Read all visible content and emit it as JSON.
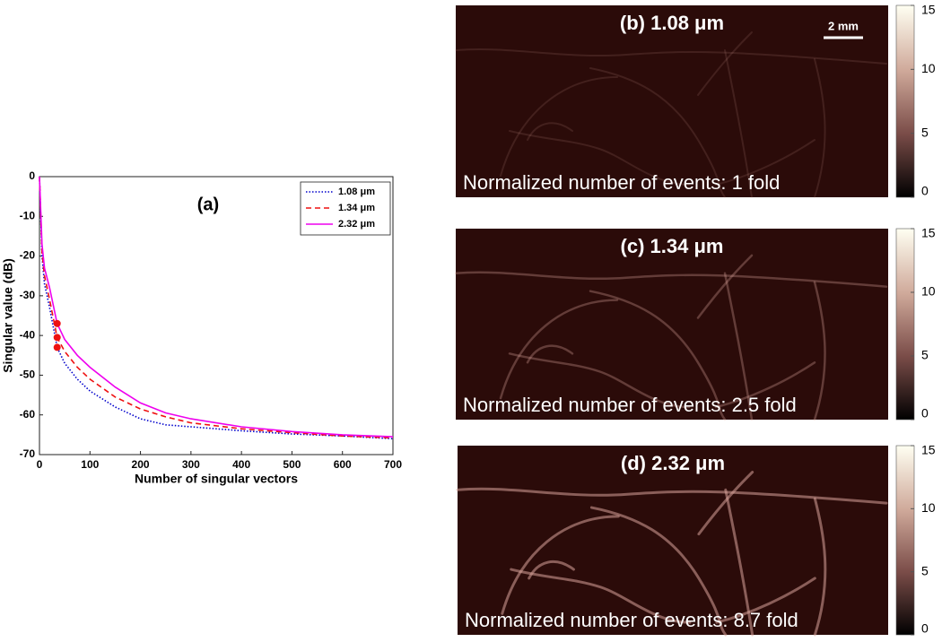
{
  "chart_data": [
    {
      "type": "line",
      "title": "(a)",
      "x_label": "Number of singular vectors",
      "y_label": "Singular value (dB)",
      "x": [
        0,
        5,
        10,
        20,
        35,
        50,
        75,
        100,
        150,
        200,
        250,
        300,
        400,
        500,
        600,
        700
      ],
      "series": [
        {
          "name": "1.08 μm",
          "color": "#0000cc",
          "dash": "dotted",
          "values": [
            0,
            -20,
            -27,
            -33,
            -43,
            -47,
            -51,
            -54,
            -58,
            -61,
            -62.5,
            -63,
            -64,
            -64.8,
            -65.3,
            -66
          ]
        },
        {
          "name": "1.34 μm",
          "color": "#ee1111",
          "dash": "dashed",
          "values": [
            0,
            -19,
            -25,
            -31,
            -40.5,
            -44,
            -48,
            -51,
            -55.5,
            -58.5,
            -60.5,
            -62,
            -63.5,
            -64.5,
            -65.3,
            -65.8
          ]
        },
        {
          "name": "2.32 μm",
          "color": "#ee00ee",
          "dash": "solid",
          "values": [
            0,
            -17,
            -23,
            -28,
            -37,
            -41,
            -45,
            -48,
            -53,
            -57,
            -59.5,
            -61,
            -63,
            -64.2,
            -65,
            -65.5
          ]
        }
      ],
      "markers": {
        "color": "#ee1111",
        "x": [
          35,
          35,
          35
        ],
        "values": [
          -37,
          -40.5,
          -43
        ]
      },
      "xlim": [
        0,
        700
      ],
      "xticks": [
        0,
        100,
        200,
        300,
        400,
        500,
        600,
        700
      ],
      "ylim": [
        -70,
        0
      ],
      "yticks": [
        -70,
        -60,
        -50,
        -40,
        -30,
        -20,
        -10,
        0
      ],
      "legend": "upper right"
    },
    {
      "type": "image",
      "title": "(b) 1.08 μm",
      "scale_bar_label": "2 mm",
      "annotation": "Normalized number of events: 1 fold",
      "clim": [
        0,
        15
      ],
      "cticks": [
        0,
        5,
        10,
        15
      ]
    },
    {
      "type": "image",
      "title": "(c) 1.34 μm",
      "annotation": "Normalized number of events: 2.5 fold",
      "clim": [
        0,
        15
      ],
      "cticks": [
        0,
        5,
        10,
        15
      ]
    },
    {
      "type": "image",
      "title": "(d) 2.32 μm",
      "annotation": "Normalized number of events: 8.7 fold",
      "clim": [
        0,
        15
      ],
      "cticks": [
        0,
        5,
        10,
        15
      ]
    }
  ]
}
